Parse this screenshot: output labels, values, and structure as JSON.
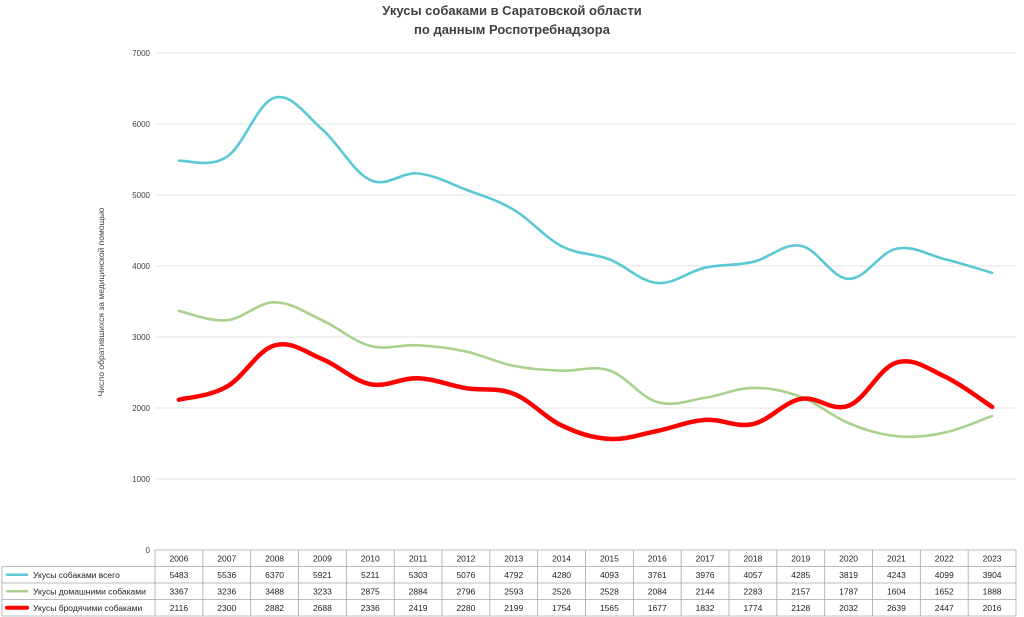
{
  "chart_data": {
    "type": "line",
    "title": "Укусы собаками в Саратовской области",
    "subtitle": "по данным Роспотребнадзора",
    "ylabel": "Число обратившихся за медицинской помощью",
    "xlabel": "",
    "ylim": [
      0,
      7000
    ],
    "yticks": [
      "0",
      "1000",
      "2000",
      "3000",
      "4000",
      "5000",
      "6000",
      "7000"
    ],
    "grid": true,
    "legend": "data-table-bottom",
    "categories": [
      "2006",
      "2007",
      "2008",
      "2009",
      "2010",
      "2011",
      "2012",
      "2013",
      "2014",
      "2015",
      "2016",
      "2017",
      "2018",
      "2019",
      "2020",
      "2021",
      "2022",
      "2023"
    ],
    "series": [
      {
        "name": "Укусы собаками всего",
        "color": "#5bc8d6",
        "values": [
          5483,
          5536,
          6370,
          5921,
          5211,
          5303,
          5076,
          4792,
          4280,
          4093,
          3761,
          3976,
          4057,
          4285,
          3819,
          4243,
          4099,
          3904
        ]
      },
      {
        "name": "Укусы домашними собаками",
        "color": "#a9d18e",
        "values": [
          3367,
          3236,
          3488,
          3233,
          2875,
          2884,
          2796,
          2593,
          2526,
          2528,
          2084,
          2144,
          2283,
          2157,
          1787,
          1604,
          1652,
          1888
        ]
      },
      {
        "name": "Укусы бродячими собаками",
        "color": "#ff0000",
        "values": [
          2116,
          2300,
          2882,
          2688,
          2336,
          2419,
          2280,
          2199,
          1754,
          1565,
          1677,
          1832,
          1774,
          2128,
          2032,
          2639,
          2447,
          2016
        ]
      }
    ]
  }
}
